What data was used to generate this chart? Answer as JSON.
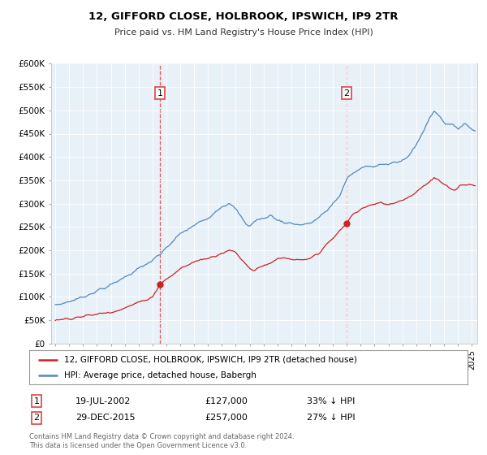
{
  "title": "12, GIFFORD CLOSE, HOLBROOK, IPSWICH, IP9 2TR",
  "subtitle": "Price paid vs. HM Land Registry's House Price Index (HPI)",
  "ylim": [
    0,
    600000
  ],
  "yticks": [
    0,
    50000,
    100000,
    150000,
    200000,
    250000,
    300000,
    350000,
    400000,
    450000,
    500000,
    550000,
    600000
  ],
  "bg_color": "#e8f0f8",
  "fig_color": "#ffffff",
  "hpi_color": "#5588bb",
  "price_color": "#cc2222",
  "dashed_color": "#dd4444",
  "sale1_year": 2002.54,
  "sale1_price": 127000,
  "sale2_year": 2015.99,
  "sale2_price": 257000,
  "footer": "Contains HM Land Registry data © Crown copyright and database right 2024.\nThis data is licensed under the Open Government Licence v3.0.",
  "legend1": "12, GIFFORD CLOSE, HOLBROOK, IPSWICH, IP9 2TR (detached house)",
  "legend2": "HPI: Average price, detached house, Babergh",
  "ann1_date": "19-JUL-2002",
  "ann1_price": "£127,000",
  "ann1_pct": "33% ↓ HPI",
  "ann2_date": "29-DEC-2015",
  "ann2_price": "£257,000",
  "ann2_pct": "27% ↓ HPI",
  "xstart": 1995,
  "xend": 2025
}
